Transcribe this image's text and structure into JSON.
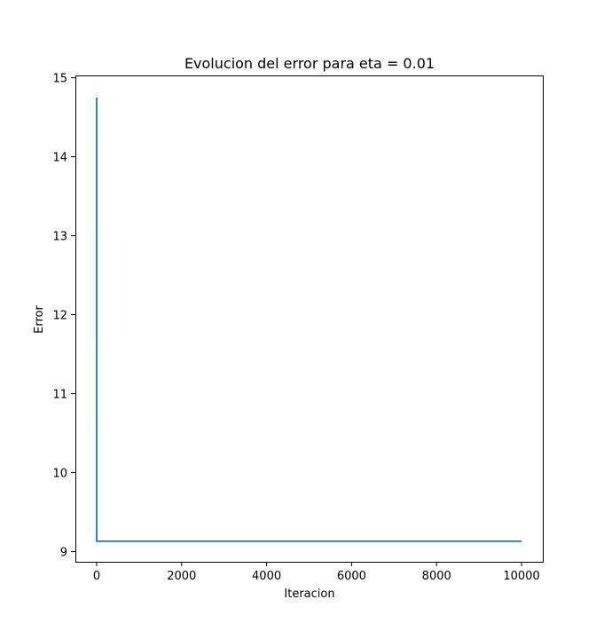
{
  "chart_data": {
    "type": "line",
    "title": "Evolucion del error para eta = 0.01",
    "xlabel": "Iteracion",
    "ylabel": "Error",
    "xlim": [
      -500,
      10500
    ],
    "ylim": [
      8.87,
      15.03
    ],
    "xticks": [
      0,
      2000,
      4000,
      6000,
      8000,
      10000
    ],
    "xtick_labels": [
      "0",
      "2000",
      "4000",
      "6000",
      "8000",
      "10000"
    ],
    "yticks": [
      9,
      10,
      11,
      12,
      13,
      14,
      15
    ],
    "ytick_labels": [
      "9",
      "10",
      "11",
      "12",
      "13",
      "14",
      "15"
    ],
    "grid": false,
    "series": [
      {
        "color": "#1f77b4",
        "x": [
          0,
          1,
          10000
        ],
        "y": [
          14.75,
          9.13,
          9.13
        ]
      }
    ]
  }
}
